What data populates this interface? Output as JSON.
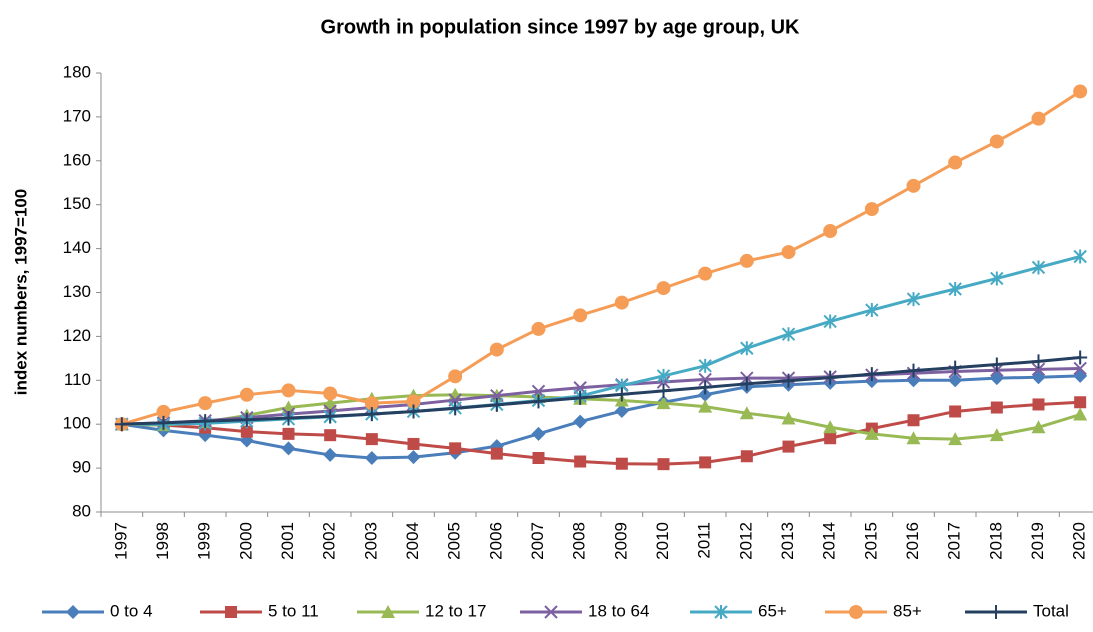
{
  "chart_data": {
    "type": "line",
    "title": "Growth in population since 1997 by age group, UK",
    "y_label": "index numbers, 1997=100",
    "categories": [
      "1997",
      "1998",
      "1999",
      "2000",
      "2001",
      "2002",
      "2003",
      "2004",
      "2005",
      "2006",
      "2007",
      "2008",
      "2009",
      "2010",
      "2011",
      "2012",
      "2013",
      "2014",
      "2015",
      "2016",
      "2017",
      "2018",
      "2019",
      "2020"
    ],
    "ylim": [
      80,
      180
    ],
    "yticks": [
      80,
      90,
      100,
      110,
      120,
      130,
      140,
      150,
      160,
      170,
      180
    ],
    "grid": false,
    "legend": "bottom",
    "series": [
      {
        "name": "0 to 4",
        "color": "#4a7ebb",
        "marker": "diamond",
        "values": [
          100,
          98.6,
          97.5,
          96.3,
          94.5,
          93,
          92.3,
          92.5,
          93.5,
          95,
          97.8,
          100.6,
          103,
          105,
          106.7,
          108.5,
          109,
          109.4,
          109.8,
          110,
          110,
          110.5,
          110.7,
          111
        ]
      },
      {
        "name": "5 to 11",
        "color": "#be4b48",
        "marker": "square",
        "values": [
          100,
          99.8,
          99.2,
          98.3,
          97.8,
          97.5,
          96.6,
          95.5,
          94.5,
          93.3,
          92.3,
          91.5,
          91,
          90.9,
          91.3,
          92.7,
          94.9,
          96.8,
          99,
          100.9,
          102.9,
          103.8,
          104.5,
          105
        ]
      },
      {
        "name": "12 to 17",
        "color": "#98b954",
        "marker": "triangle",
        "values": [
          100,
          99.8,
          100.5,
          102,
          103.8,
          104.8,
          105.8,
          106.5,
          106.7,
          106.5,
          106.2,
          105.8,
          105.4,
          104.8,
          104,
          102.5,
          101.3,
          99.3,
          97.8,
          96.8,
          96.6,
          97.5,
          99.3,
          102.2
        ]
      },
      {
        "name": "18 to 64",
        "color": "#7d60a0",
        "marker": "x",
        "values": [
          100,
          100.3,
          100.8,
          101.5,
          102.3,
          103,
          103.8,
          104.5,
          105.5,
          106.5,
          107.5,
          108.3,
          109,
          109.6,
          110.2,
          110.5,
          110.5,
          110.8,
          111.2,
          111.6,
          112,
          112.3,
          112.5,
          112.7
        ]
      },
      {
        "name": "65+",
        "color": "#46aac5",
        "marker": "star",
        "values": [
          100,
          100,
          100.2,
          100.7,
          101.2,
          101.7,
          102.3,
          102.9,
          103.7,
          104.5,
          105.4,
          106.4,
          108.8,
          111,
          113.3,
          117.3,
          120.5,
          123.4,
          126,
          128.5,
          130.8,
          133.2,
          135.7,
          138.2
        ]
      },
      {
        "name": "85+",
        "color": "#f59d56",
        "marker": "circle",
        "values": [
          100,
          102.8,
          104.8,
          106.7,
          107.7,
          107,
          104.8,
          105.2,
          110.9,
          117,
          121.7,
          124.8,
          127.7,
          131,
          134.3,
          137.2,
          139.2,
          144,
          149,
          154.3,
          159.6,
          164.4,
          169.6,
          175.8
        ]
      },
      {
        "name": "Total",
        "color": "#243f60",
        "marker": "plus",
        "values": [
          100,
          100.3,
          100.7,
          101,
          101.4,
          101.8,
          102.3,
          102.9,
          103.6,
          104.4,
          105.2,
          106,
          106.8,
          107.6,
          108.4,
          109.2,
          109.9,
          110.6,
          111.4,
          112.2,
          112.9,
          113.6,
          114.3,
          115.2
        ]
      }
    ]
  }
}
